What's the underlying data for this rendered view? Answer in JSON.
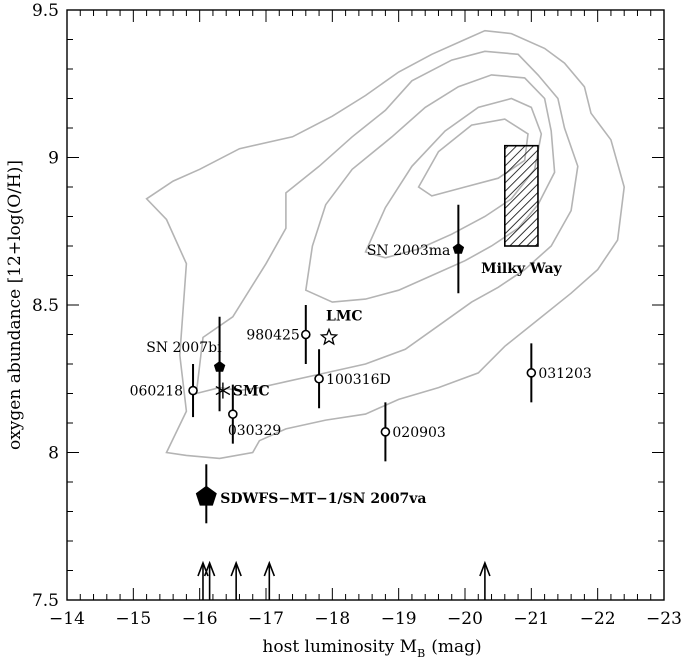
{
  "chart_data": {
    "type": "scatter",
    "xlabel": "host luminosity M",
    "xlabel_sub": "B",
    "xlabel_unit": "(mag)",
    "ylabel": "oxygen abundance [12+log(O/H)]",
    "xlim": [
      -14,
      -23
    ],
    "ylim": [
      7.5,
      9.5
    ],
    "x_ticks": [
      -14,
      -15,
      -16,
      -17,
      -18,
      -19,
      -20,
      -21,
      -22,
      -23
    ],
    "x_tick_labels": [
      "−14",
      "−15",
      "−16",
      "−17",
      "−18",
      "−19",
      "−20",
      "−21",
      "−22",
      "−23"
    ],
    "y_ticks": [
      7.5,
      8,
      8.5,
      9,
      9.5
    ],
    "y_tick_labels": [
      "7.5",
      "8",
      "8.5",
      "9",
      "9.5"
    ],
    "grid": false,
    "grbs": [
      {
        "name": "060218",
        "x": -15.9,
        "y": 8.21,
        "yerr_lo": 0.09,
        "yerr_hi": 0.09
      },
      {
        "name": "030329",
        "x": -16.5,
        "y": 8.13,
        "yerr_lo": 0.1,
        "yerr_hi": 0.1
      },
      {
        "name": "980425",
        "x": -17.6,
        "y": 8.4,
        "yerr_lo": 0.1,
        "yerr_hi": 0.1
      },
      {
        "name": "100316D",
        "x": -17.8,
        "y": 8.25,
        "yerr_lo": 0.1,
        "yerr_hi": 0.1
      },
      {
        "name": "020903",
        "x": -18.8,
        "y": 8.07,
        "yerr_lo": 0.1,
        "yerr_hi": 0.1
      },
      {
        "name": "031203",
        "x": -21.0,
        "y": 8.27,
        "yerr_lo": 0.1,
        "yerr_hi": 0.1
      }
    ],
    "supernovae": [
      {
        "name": "SN 2007bi",
        "x": -16.3,
        "y": 8.29,
        "yerr_lo": 0.15,
        "yerr_hi": 0.17
      },
      {
        "name": "SN 2003ma",
        "x": -19.9,
        "y": 8.69,
        "yerr_lo": 0.15,
        "yerr_hi": 0.15
      }
    ],
    "highlight": {
      "name": "SDWFS−MT−1/SN 2007va",
      "x": -16.1,
      "y": 7.85,
      "yerr_lo": 0.09,
      "yerr_hi": 0.11
    },
    "reference_galaxies": [
      {
        "name": "LMC",
        "x": -17.95,
        "y": 8.39
      },
      {
        "name": "SMC",
        "x": -16.35,
        "y": 8.21
      }
    ],
    "milky_way": {
      "name": "Milky Way",
      "x_range": [
        -20.6,
        -21.1
      ],
      "y_range": [
        8.7,
        9.04
      ]
    },
    "upper_limit_arrows_x": [
      -16.05,
      -16.15,
      -16.55,
      -17.05,
      -20.3
    ],
    "contour_levels": [
      [
        [
          -15.5,
          8.0
        ],
        [
          -15.8,
          8.14
        ],
        [
          -15.7,
          8.33
        ],
        [
          -15.8,
          8.64
        ],
        [
          -15.5,
          8.79
        ],
        [
          -15.2,
          8.86
        ],
        [
          -15.6,
          8.92
        ],
        [
          -16.0,
          8.96
        ],
        [
          -16.6,
          9.03
        ],
        [
          -17.4,
          9.07
        ],
        [
          -18.0,
          9.14
        ],
        [
          -18.5,
          9.21
        ],
        [
          -19.0,
          9.29
        ],
        [
          -19.5,
          9.35
        ],
        [
          -20.0,
          9.4
        ],
        [
          -20.3,
          9.43
        ],
        [
          -20.7,
          9.42
        ],
        [
          -21.2,
          9.37
        ],
        [
          -21.5,
          9.32
        ],
        [
          -21.8,
          9.24
        ],
        [
          -21.9,
          9.15
        ],
        [
          -22.2,
          9.06
        ],
        [
          -22.4,
          8.9
        ],
        [
          -22.3,
          8.72
        ],
        [
          -22.0,
          8.62
        ],
        [
          -21.6,
          8.54
        ],
        [
          -21.1,
          8.45
        ],
        [
          -20.6,
          8.36
        ],
        [
          -20.2,
          8.27
        ],
        [
          -19.6,
          8.22
        ],
        [
          -19.0,
          8.18
        ],
        [
          -18.5,
          8.13
        ],
        [
          -17.9,
          8.11
        ],
        [
          -17.3,
          8.08
        ],
        [
          -16.9,
          8.04
        ],
        [
          -16.8,
          8.0
        ],
        [
          -16.3,
          7.98
        ],
        [
          -15.8,
          7.99
        ],
        [
          -15.5,
          8.0
        ]
      ],
      [
        [
          -15.95,
          8.2
        ],
        [
          -16.05,
          8.39
        ],
        [
          -16.5,
          8.46
        ],
        [
          -17.0,
          8.64
        ],
        [
          -17.3,
          8.76
        ],
        [
          -17.3,
          8.88
        ],
        [
          -17.8,
          8.97
        ],
        [
          -18.3,
          9.07
        ],
        [
          -18.8,
          9.16
        ],
        [
          -19.2,
          9.26
        ],
        [
          -19.8,
          9.33
        ],
        [
          -20.3,
          9.36
        ],
        [
          -20.8,
          9.35
        ],
        [
          -21.1,
          9.28
        ],
        [
          -21.4,
          9.2
        ],
        [
          -21.5,
          9.1
        ],
        [
          -21.7,
          8.97
        ],
        [
          -21.6,
          8.82
        ],
        [
          -21.3,
          8.7
        ],
        [
          -20.9,
          8.62
        ],
        [
          -20.5,
          8.56
        ],
        [
          -20.1,
          8.51
        ],
        [
          -19.6,
          8.43
        ],
        [
          -19.1,
          8.35
        ],
        [
          -18.5,
          8.3
        ],
        [
          -17.9,
          8.27
        ],
        [
          -17.3,
          8.24
        ],
        [
          -16.9,
          8.22
        ],
        [
          -16.6,
          8.21
        ],
        [
          -16.3,
          8.22
        ],
        [
          -15.95,
          8.2
        ]
      ],
      [
        [
          -17.6,
          8.55
        ],
        [
          -17.7,
          8.7
        ],
        [
          -17.9,
          8.84
        ],
        [
          -18.3,
          8.96
        ],
        [
          -18.9,
          9.07
        ],
        [
          -19.4,
          9.17
        ],
        [
          -19.9,
          9.24
        ],
        [
          -20.4,
          9.28
        ],
        [
          -20.9,
          9.27
        ],
        [
          -21.2,
          9.2
        ],
        [
          -21.3,
          9.09
        ],
        [
          -21.35,
          8.95
        ],
        [
          -21.1,
          8.84
        ],
        [
          -20.8,
          8.76
        ],
        [
          -20.4,
          8.7
        ],
        [
          -20.0,
          8.65
        ],
        [
          -19.5,
          8.6
        ],
        [
          -19.0,
          8.55
        ],
        [
          -18.5,
          8.52
        ],
        [
          -18.0,
          8.51
        ],
        [
          -17.6,
          8.55
        ]
      ],
      [
        [
          -18.5,
          8.68
        ],
        [
          -18.8,
          8.83
        ],
        [
          -19.2,
          8.97
        ],
        [
          -19.7,
          9.09
        ],
        [
          -20.2,
          9.17
        ],
        [
          -20.7,
          9.2
        ],
        [
          -21.0,
          9.17
        ],
        [
          -21.15,
          9.08
        ],
        [
          -21.05,
          8.96
        ],
        [
          -20.7,
          8.86
        ],
        [
          -20.3,
          8.8
        ],
        [
          -19.8,
          8.74
        ],
        [
          -19.3,
          8.69
        ],
        [
          -18.8,
          8.66
        ],
        [
          -18.5,
          8.68
        ]
      ],
      [
        [
          -19.3,
          8.9
        ],
        [
          -19.6,
          9.02
        ],
        [
          -20.1,
          9.11
        ],
        [
          -20.6,
          9.13
        ],
        [
          -20.95,
          9.08
        ],
        [
          -20.9,
          8.99
        ],
        [
          -20.5,
          8.93
        ],
        [
          -20.0,
          8.9
        ],
        [
          -19.5,
          8.87
        ],
        [
          -19.3,
          8.9
        ]
      ]
    ]
  }
}
